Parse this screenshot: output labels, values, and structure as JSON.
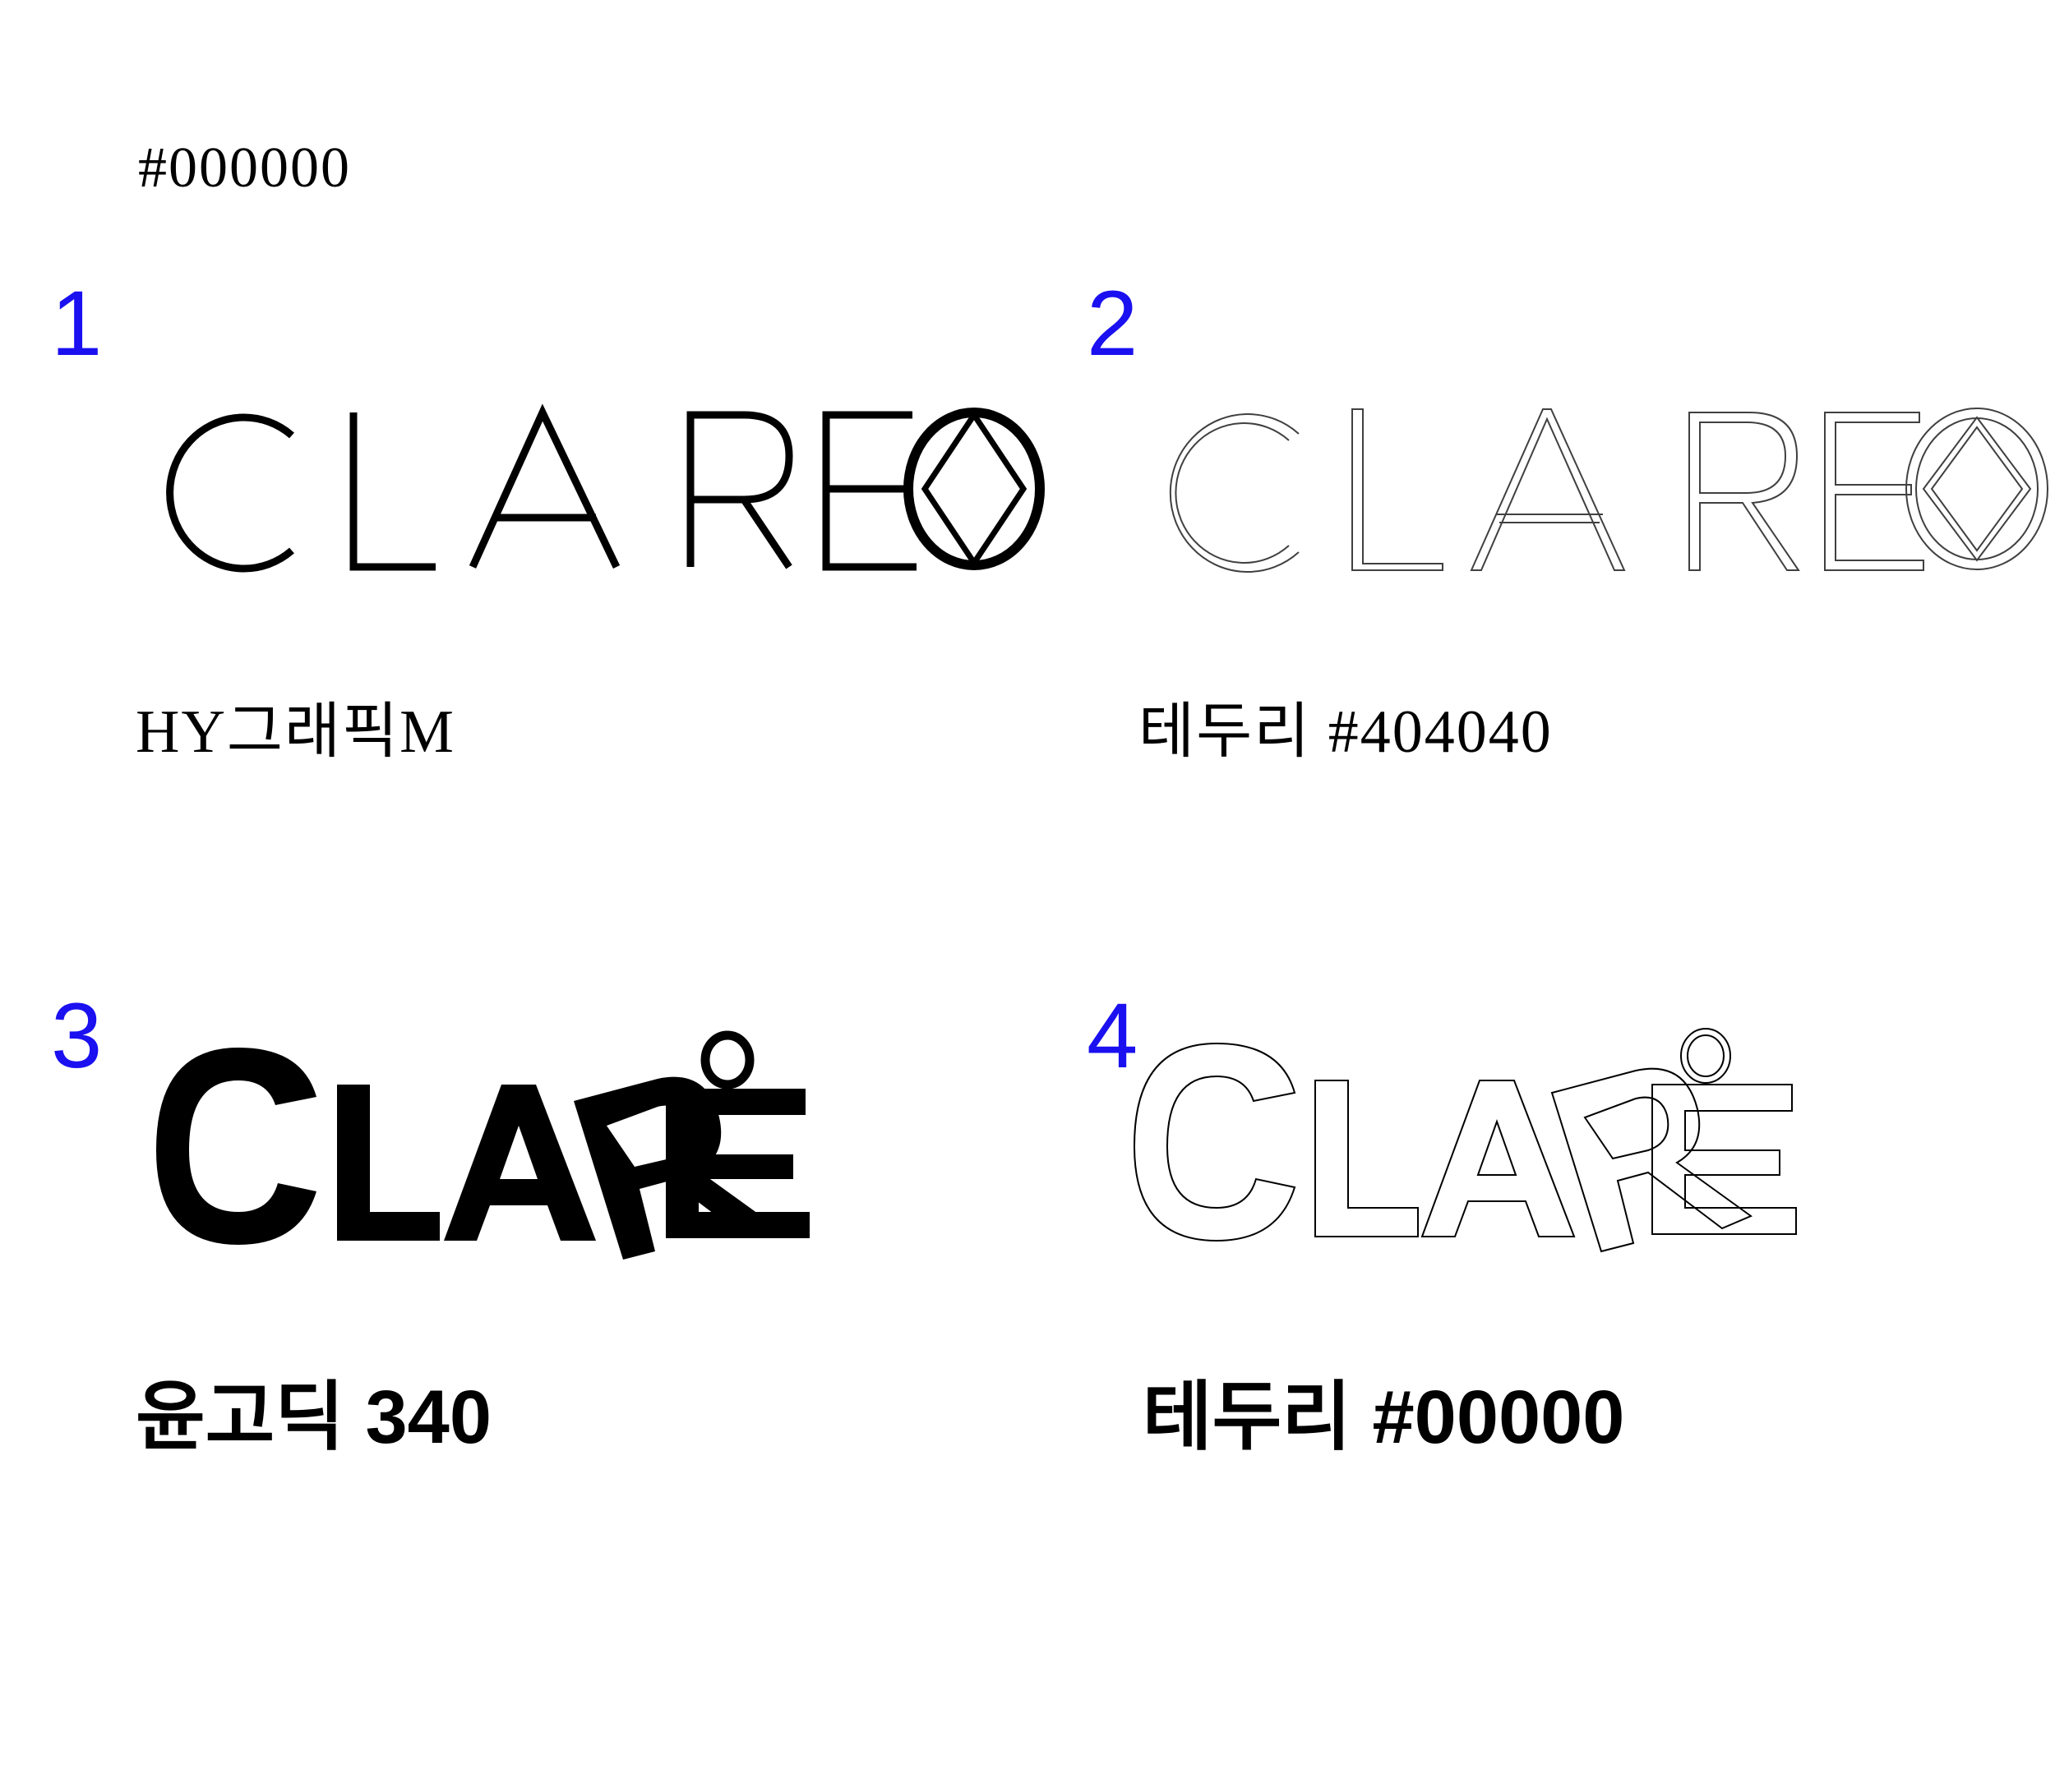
{
  "header": {
    "color_code": "#000000"
  },
  "variants": [
    {
      "number": "1",
      "caption": "HY그래픽M"
    },
    {
      "number": "2",
      "caption": "테두리 #404040"
    },
    {
      "number": "3",
      "caption": "윤고딕 340"
    },
    {
      "number": "4",
      "caption": "테두리 #00000"
    }
  ],
  "logos": {
    "logo1": {
      "text": "CLAREO",
      "style": "thin-fill",
      "color": "#000000"
    },
    "logo2": {
      "text": "CLAREO",
      "style": "thin-outline",
      "color": "#404040"
    },
    "logo3": {
      "text": "CLARE",
      "style": "bold-fill",
      "color": "#000000"
    },
    "logo4": {
      "text": "CLARE",
      "style": "bold-outline",
      "color": "#000000"
    }
  },
  "colors": {
    "number_accent": "#1a10f0"
  }
}
